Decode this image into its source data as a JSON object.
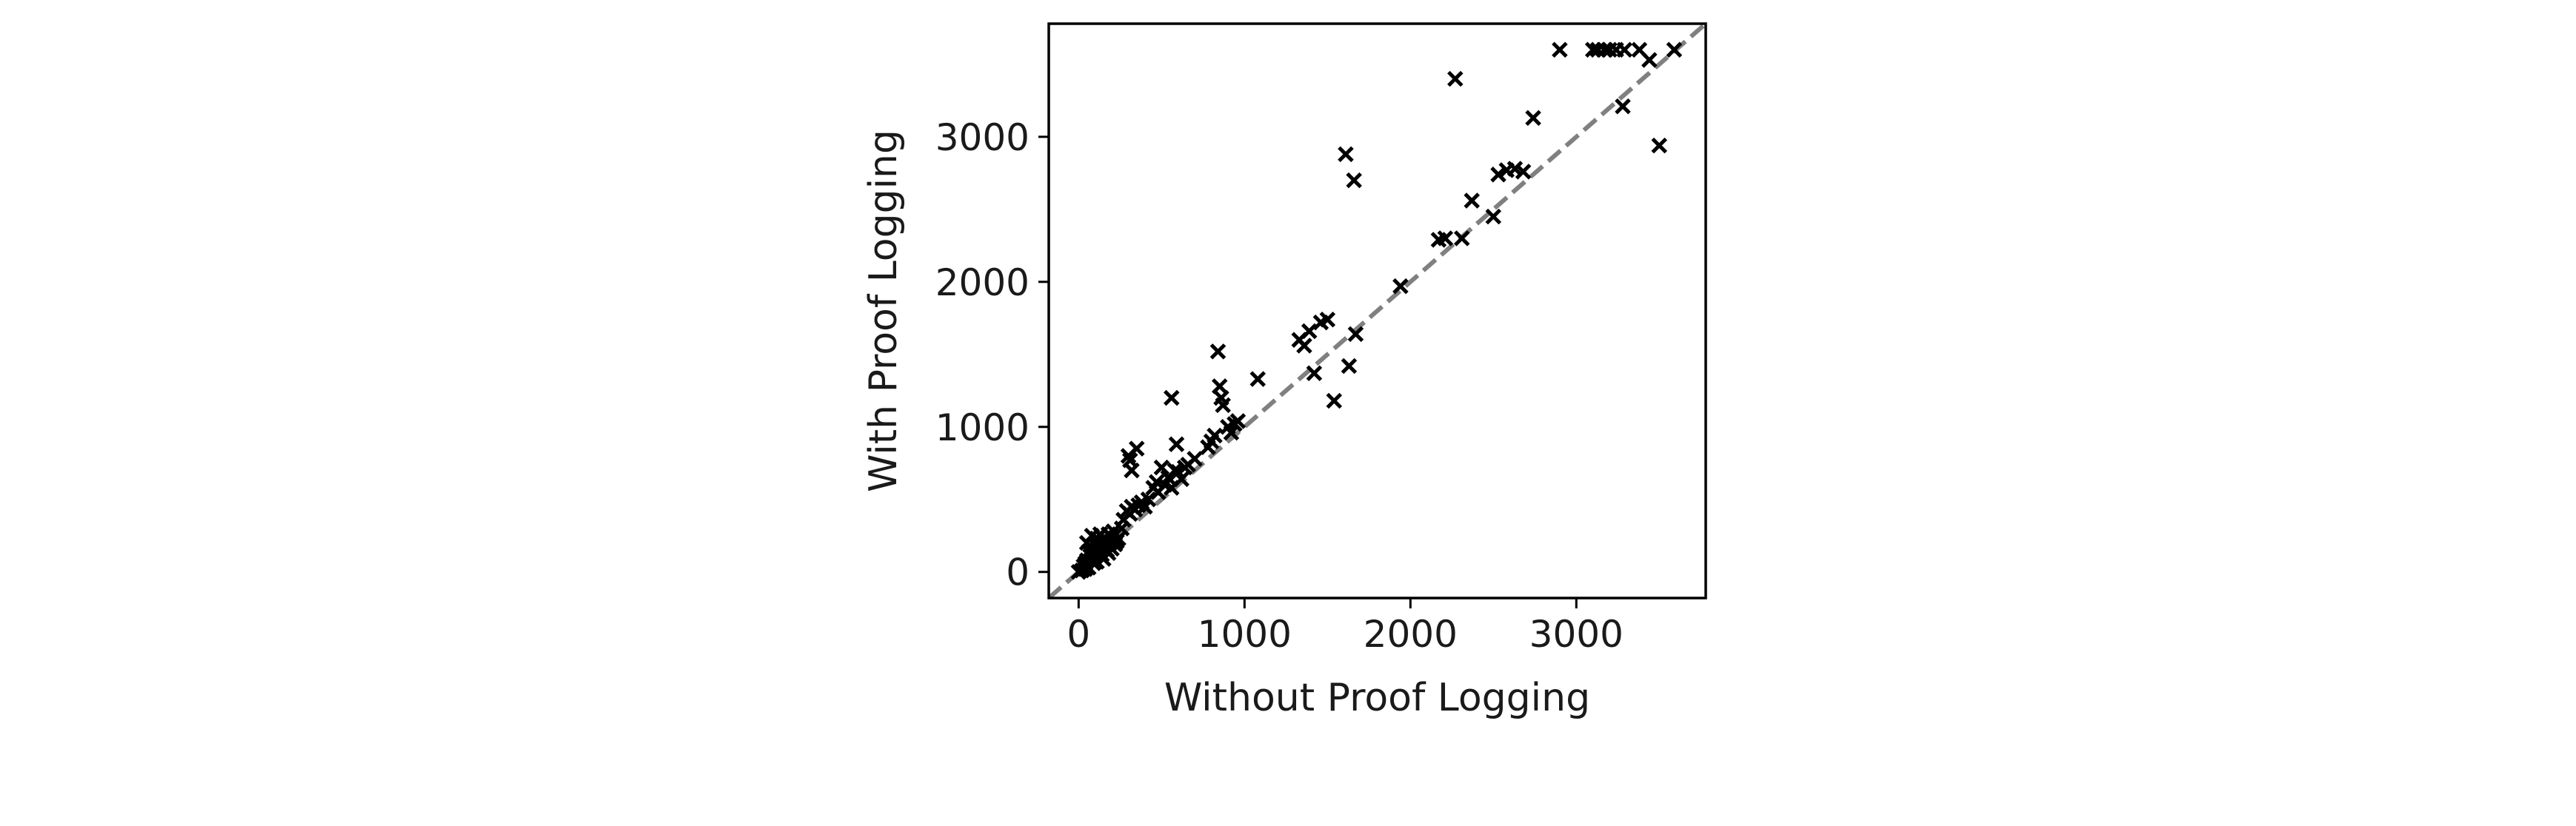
{
  "chart_data": {
    "type": "scatter",
    "title": "",
    "xlabel": "Without Proof Logging",
    "ylabel": "With Proof Logging",
    "xlim": [
      -180,
      3780
    ],
    "ylim": [
      -180,
      3780
    ],
    "xticks": [
      0,
      1000,
      2000,
      3000
    ],
    "yticks": [
      0,
      1000,
      2000,
      3000
    ],
    "grid": false,
    "legend": "none",
    "marker": "x",
    "marker_color": "#000000",
    "reference_line": {
      "style": "dashed",
      "color": "#808080",
      "from": [
        -180,
        -180
      ],
      "to": [
        3780,
        3780
      ]
    },
    "series": [
      {
        "points": [
          [
            0,
            0
          ],
          [
            20,
            10
          ],
          [
            30,
            40
          ],
          [
            40,
            60
          ],
          [
            50,
            80
          ],
          [
            60,
            30
          ],
          [
            70,
            110
          ],
          [
            80,
            130
          ],
          [
            90,
            150
          ],
          [
            100,
            190
          ],
          [
            110,
            70
          ],
          [
            120,
            170
          ],
          [
            130,
            210
          ],
          [
            140,
            120
          ],
          [
            150,
            230
          ],
          [
            160,
            180
          ],
          [
            170,
            150
          ],
          [
            180,
            260
          ],
          [
            190,
            200
          ],
          [
            200,
            240
          ],
          [
            210,
            280
          ],
          [
            220,
            190
          ],
          [
            240,
            230
          ],
          [
            260,
            300
          ],
          [
            50,
            200
          ],
          [
            80,
            250
          ],
          [
            110,
            230
          ],
          [
            60,
            140
          ],
          [
            130,
            260
          ],
          [
            180,
            130
          ],
          [
            150,
            90
          ],
          [
            90,
            60
          ],
          [
            40,
            20
          ],
          [
            200,
            160
          ],
          [
            230,
            210
          ],
          [
            170,
            220
          ],
          [
            270,
            360
          ],
          [
            290,
            420
          ],
          [
            310,
            400
          ],
          [
            320,
            450
          ],
          [
            340,
            430
          ],
          [
            360,
            460
          ],
          [
            380,
            480
          ],
          [
            400,
            450
          ],
          [
            420,
            500
          ],
          [
            450,
            580
          ],
          [
            470,
            620
          ],
          [
            480,
            550
          ],
          [
            500,
            720
          ],
          [
            520,
            600
          ],
          [
            540,
            650
          ],
          [
            560,
            580
          ],
          [
            580,
            700
          ],
          [
            600,
            690
          ],
          [
            620,
            640
          ],
          [
            640,
            720
          ],
          [
            660,
            740
          ],
          [
            700,
            780
          ],
          [
            300,
            800
          ],
          [
            320,
            700
          ],
          [
            350,
            850
          ],
          [
            310,
            770
          ],
          [
            560,
            1200
          ],
          [
            590,
            880
          ],
          [
            780,
            860
          ],
          [
            800,
            900
          ],
          [
            820,
            940
          ],
          [
            840,
            1520
          ],
          [
            850,
            1280
          ],
          [
            860,
            1200
          ],
          [
            870,
            1150
          ],
          [
            900,
            1000
          ],
          [
            920,
            960
          ],
          [
            940,
            1020
          ],
          [
            960,
            1040
          ],
          [
            1080,
            1330
          ],
          [
            1330,
            1600
          ],
          [
            1360,
            1560
          ],
          [
            1390,
            1660
          ],
          [
            1420,
            1370
          ],
          [
            1460,
            1720
          ],
          [
            1500,
            1740
          ],
          [
            1540,
            1180
          ],
          [
            1610,
            2880
          ],
          [
            1630,
            1420
          ],
          [
            1660,
            2700
          ],
          [
            1670,
            1640
          ],
          [
            1940,
            1970
          ],
          [
            2170,
            2290
          ],
          [
            2210,
            2300
          ],
          [
            2270,
            3400
          ],
          [
            2310,
            2300
          ],
          [
            2370,
            2560
          ],
          [
            2500,
            2450
          ],
          [
            2530,
            2740
          ],
          [
            2580,
            2770
          ],
          [
            2630,
            2780
          ],
          [
            2680,
            2760
          ],
          [
            2740,
            3130
          ],
          [
            2900,
            3600
          ],
          [
            3100,
            3600
          ],
          [
            3130,
            3600
          ],
          [
            3170,
            3600
          ],
          [
            3200,
            3600
          ],
          [
            3240,
            3600
          ],
          [
            3280,
            3210
          ],
          [
            3290,
            3600
          ],
          [
            3380,
            3600
          ],
          [
            3440,
            3530
          ],
          [
            3500,
            2940
          ],
          [
            3590,
            3600
          ]
        ]
      }
    ]
  }
}
